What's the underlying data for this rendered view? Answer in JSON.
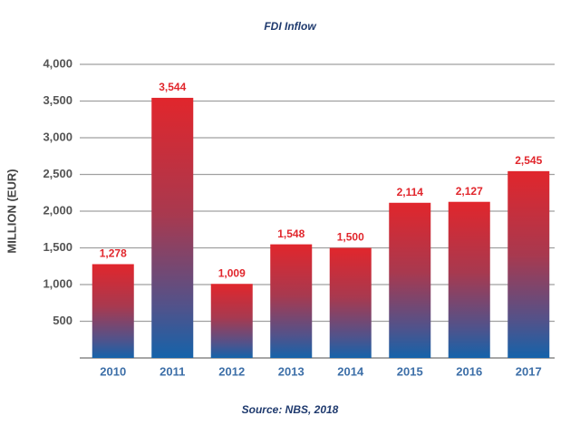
{
  "chart_data": {
    "type": "bar",
    "title": "FDI Inflow",
    "ylabel": "MILLION (EUR)",
    "source": "Source: NBS, 2018",
    "categories": [
      "2010",
      "2011",
      "2012",
      "2013",
      "2014",
      "2015",
      "2016",
      "2017"
    ],
    "values": [
      1278,
      3544,
      1009,
      1548,
      1500,
      2114,
      2127,
      2545
    ],
    "value_labels": [
      "1,278",
      "3,544",
      "1,009",
      "1,548",
      "1,500",
      "2,114",
      "2,127",
      "2,545"
    ],
    "color": "#e1262c",
    "ylim": [
      0,
      4000
    ],
    "yticks": [
      500,
      {
        "value": 1000,
        "label": "1,000"
      },
      {
        "value": 1500,
        "label": "1,500"
      },
      {
        "value": 2000,
        "label": "2,000"
      },
      {
        "value": 2500,
        "label": "2,500"
      },
      {
        "value": 3000,
        "label": "3,000"
      },
      {
        "value": 3500,
        "label": "3,500"
      },
      {
        "value": 4000,
        "label": "4,000"
      }
    ],
    "grid": true
  }
}
